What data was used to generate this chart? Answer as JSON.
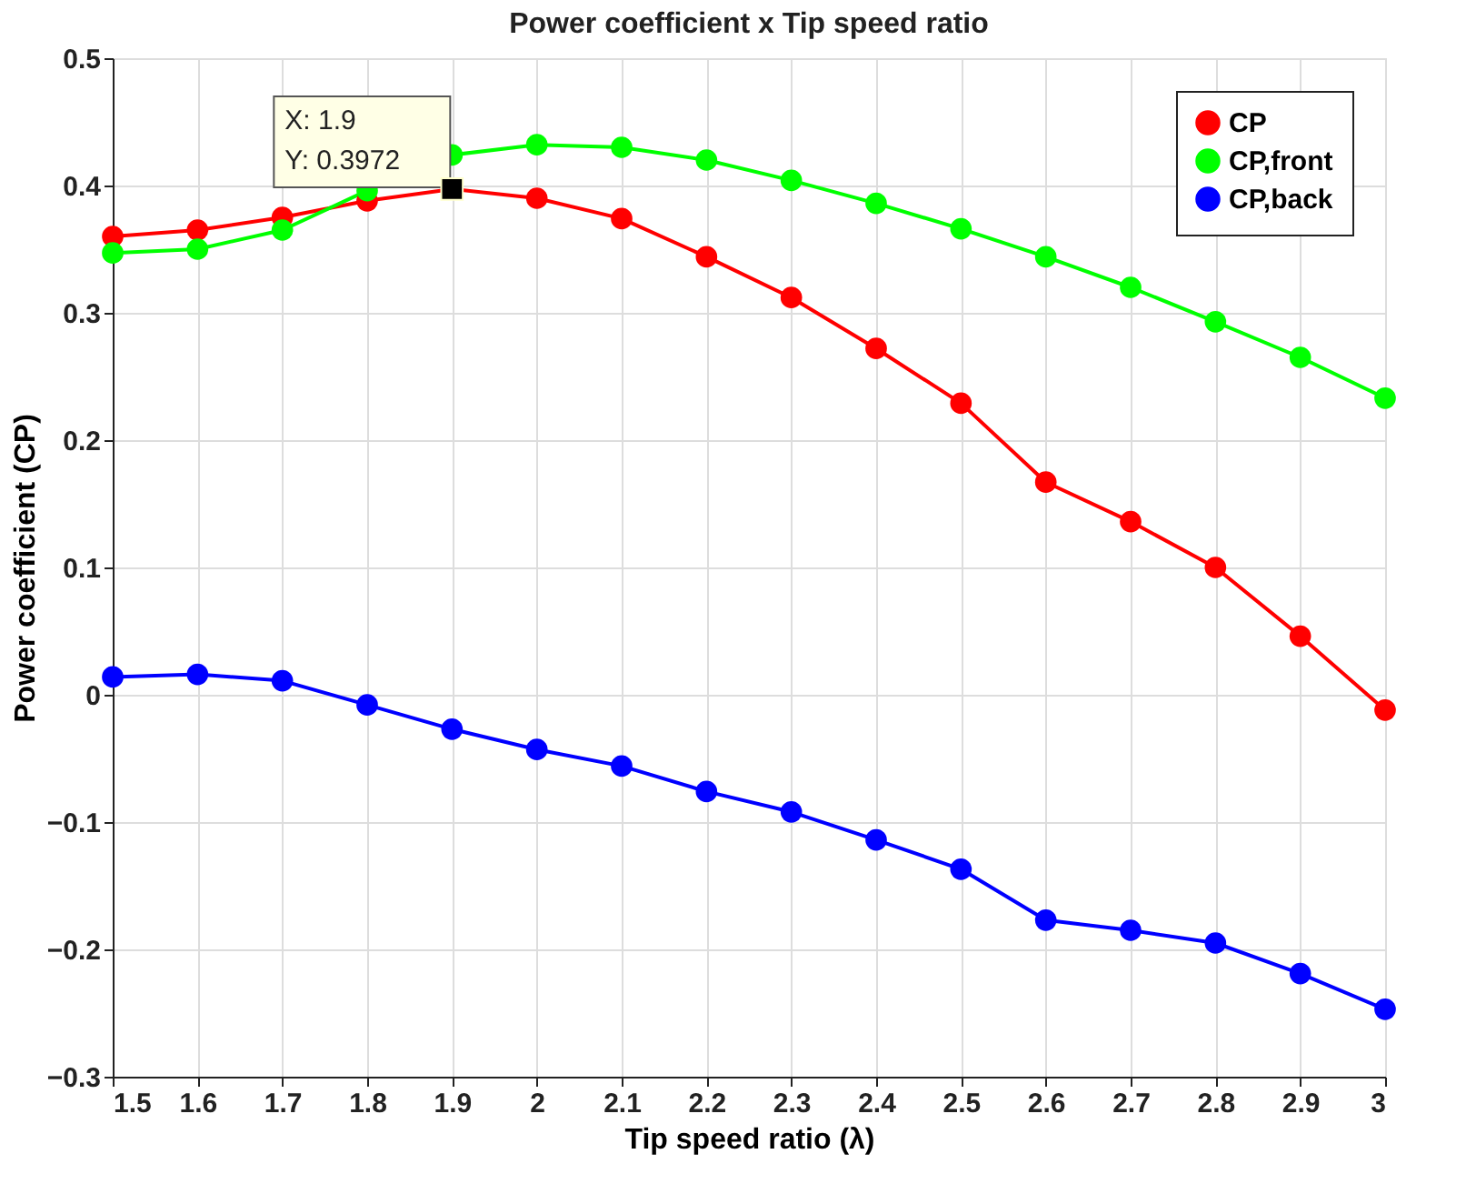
{
  "chart_data": {
    "type": "line",
    "title": "Power coefficient x Tip speed ratio",
    "xlabel": "Tip speed ratio (λ)",
    "ylabel": "Power coefficient (CP)",
    "x": [
      1.5,
      1.6,
      1.7,
      1.8,
      1.9,
      2.0,
      2.1,
      2.2,
      2.3,
      2.4,
      2.5,
      2.6,
      2.7,
      2.8,
      2.9,
      3.0
    ],
    "series": [
      {
        "name": "CP",
        "color": "#ff0000",
        "values": [
          0.36,
          0.365,
          0.375,
          0.388,
          0.3972,
          0.39,
          0.374,
          0.344,
          0.312,
          0.272,
          0.229,
          0.167,
          0.136,
          0.1,
          0.046,
          -0.012
        ]
      },
      {
        "name": "CP,front",
        "color": "#00ff00",
        "values": [
          0.347,
          0.35,
          0.365,
          0.396,
          0.424,
          0.432,
          0.43,
          0.42,
          0.404,
          0.386,
          0.366,
          0.344,
          0.32,
          0.293,
          0.265,
          0.233
        ]
      },
      {
        "name": "CP,back",
        "color": "#0000ff",
        "values": [
          0.014,
          0.016,
          0.011,
          -0.008,
          -0.027,
          -0.043,
          -0.056,
          -0.076,
          -0.092,
          -0.114,
          -0.137,
          -0.177,
          -0.185,
          -0.195,
          -0.219,
          -0.247
        ]
      }
    ],
    "xlim": [
      1.5,
      3
    ],
    "xticks": [
      1.5,
      1.6,
      1.7,
      1.8,
      1.9,
      2,
      2.1,
      2.2,
      2.3,
      2.4,
      2.5,
      2.6,
      2.7,
      2.8,
      2.9,
      3
    ],
    "ylim": [
      -0.3,
      0.5
    ],
    "yticks": [
      -0.3,
      -0.2,
      -0.1,
      0,
      0.1,
      0.2,
      0.3,
      0.4,
      0.5
    ],
    "annotations": [
      {
        "text": "X: 1.9\nY: 0.3972",
        "x": 1.9,
        "y": 0.3972
      }
    ],
    "grid": true,
    "legend": "top right",
    "marker": "circle",
    "line_style": "solid"
  }
}
